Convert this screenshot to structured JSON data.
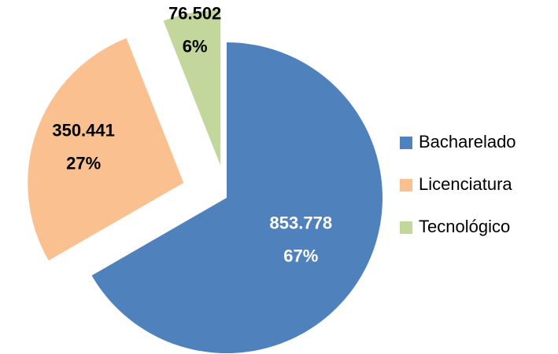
{
  "chart_data": {
    "type": "pie",
    "categories": [
      "Bacharelado",
      "Licenciatura",
      "Tecnológico"
    ],
    "values": [
      853778,
      350441,
      76502
    ],
    "value_labels": [
      "853.778",
      "350.441",
      "76.502"
    ],
    "percentages": [
      67,
      27,
      6
    ],
    "percent_labels": [
      "67%",
      "27%",
      "6%"
    ],
    "colors": [
      "#4f81bd",
      "#fac090",
      "#c3d69b"
    ],
    "label_colors": [
      "#ffffff",
      "#000000",
      "#000000"
    ],
    "legend": "right"
  }
}
